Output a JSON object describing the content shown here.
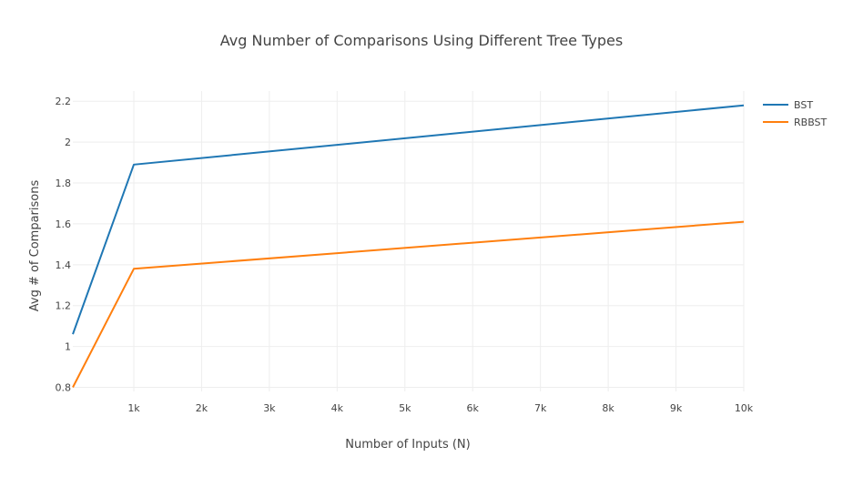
{
  "chart_data": {
    "type": "line",
    "title": "Avg Number of Comparisons Using Different Tree Types",
    "xlabel": "Number of Inputs (N)",
    "ylabel": "Avg # of Comparisons",
    "xlim": [
      100,
      10000
    ],
    "ylim": [
      0.78,
      2.25
    ],
    "x_ticks": [
      1000,
      2000,
      3000,
      4000,
      5000,
      6000,
      7000,
      8000,
      9000,
      10000
    ],
    "x_tick_labels": [
      "1k",
      "2k",
      "3k",
      "4k",
      "5k",
      "6k",
      "7k",
      "8k",
      "9k",
      "10k"
    ],
    "y_ticks": [
      0.8,
      1,
      1.2,
      1.4,
      1.6,
      1.8,
      2,
      2.2
    ],
    "y_tick_labels": [
      "0.8",
      "1",
      "1.2",
      "1.4",
      "1.6",
      "1.8",
      "2",
      "2.2"
    ],
    "grid": true,
    "legend_position": "top-right",
    "x": [
      100,
      1000,
      10000
    ],
    "series": [
      {
        "name": "BST",
        "color": "#1f77b4",
        "values": [
          1.06,
          1.89,
          2.18
        ]
      },
      {
        "name": "RBBST",
        "color": "#ff7f0e",
        "values": [
          0.8,
          1.38,
          1.61
        ]
      }
    ]
  }
}
